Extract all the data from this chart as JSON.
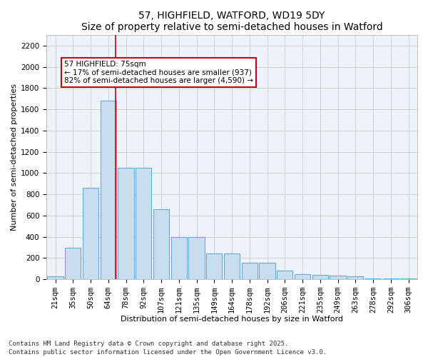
{
  "title": "57, HIGHFIELD, WATFORD, WD19 5DY",
  "subtitle": "Size of property relative to semi-detached houses in Watford",
  "xlabel": "Distribution of semi-detached houses by size in Watford",
  "ylabel": "Number of semi-detached properties",
  "footnote": "Contains HM Land Registry data © Crown copyright and database right 2025.\nContains public sector information licensed under the Open Government Licence v3.0.",
  "bar_labels": [
    "21sqm",
    "35sqm",
    "50sqm",
    "64sqm",
    "78sqm",
    "92sqm",
    "107sqm",
    "121sqm",
    "135sqm",
    "149sqm",
    "164sqm",
    "178sqm",
    "192sqm",
    "206sqm",
    "221sqm",
    "235sqm",
    "249sqm",
    "263sqm",
    "278sqm",
    "292sqm",
    "306sqm"
  ],
  "bar_values": [
    30,
    300,
    860,
    1680,
    1050,
    1050,
    660,
    395,
    395,
    240,
    240,
    155,
    155,
    80,
    50,
    40,
    35,
    30,
    10,
    5,
    10
  ],
  "bar_color": "#c9ddf0",
  "bar_edge_color": "#6aaad4",
  "property_label": "57 HIGHFIELD: 75sqm",
  "pct_smaller": 17,
  "pct_larger": 82,
  "n_smaller": 937,
  "n_larger": 4590,
  "vline_x_index": 3.43,
  "annotation_box_color": "#ffffff",
  "annotation_box_edge_color": "#cc0000",
  "vline_color": "#cc0000",
  "ylim": [
    0,
    2300
  ],
  "yticks": [
    0,
    200,
    400,
    600,
    800,
    1000,
    1200,
    1400,
    1600,
    1800,
    2000,
    2200
  ],
  "grid_color": "#cccccc",
  "bg_color": "#eef2f9",
  "title_fontsize": 10,
  "axis_label_fontsize": 8,
  "tick_fontsize": 7.5,
  "annotation_fontsize": 7.5,
  "footnote_fontsize": 6.5
}
